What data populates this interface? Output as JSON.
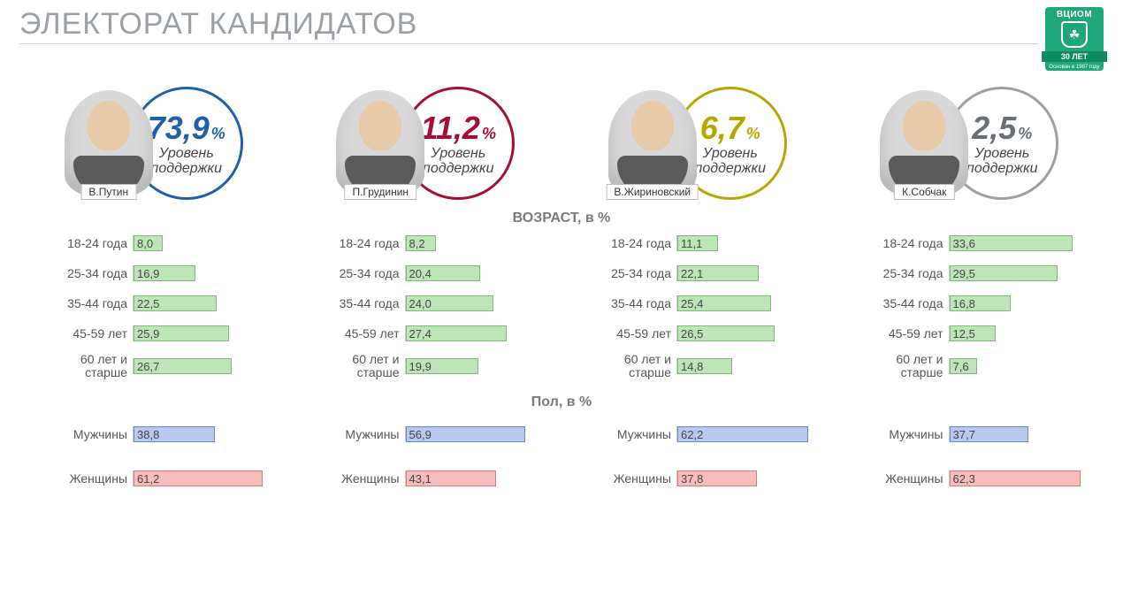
{
  "title": "ЭЛЕКТОРАТ КАНДИДАТОВ",
  "logo": {
    "brand": "ВЦИОМ",
    "ribbon": "30 ЛЕТ",
    "sub": "Основан в 1987 году",
    "bg_color": "#1fa67a"
  },
  "support_label_line1": "Уровень",
  "support_label_line2": "поддержки",
  "section_age_title": "ВОЗРАСТ, в %",
  "section_gender_title": "Пол, в %",
  "age_labels": [
    "18-24 года",
    "25-34 года",
    "35-44 года",
    "45-59 лет",
    "60 лет и старше"
  ],
  "gender_labels": [
    "Мужчины",
    "Женщины"
  ],
  "bar_colors": {
    "age_fill": "#bde5b8",
    "age_border": "#7fb97a",
    "male_fill": "#b8c8ef",
    "male_border": "#6a87c9",
    "female_fill": "#f6bdbd",
    "female_border": "#d97a7a"
  },
  "age_bar_max": 40,
  "gender_bar_max": 70,
  "pct_sign": "%",
  "candidates": [
    {
      "name": "В.Путин",
      "support": "73,9",
      "circle_color": "#1f5fae",
      "pct_color": "#1f5fae",
      "age": [
        "8,0",
        "16,9",
        "22,5",
        "25,9",
        "26,7"
      ],
      "age_num": [
        8.0,
        16.9,
        22.5,
        25.9,
        26.7
      ],
      "gender": [
        "38,8",
        "61,2"
      ],
      "gender_num": [
        38.8,
        61.2
      ]
    },
    {
      "name": "П.Грудинин",
      "support": "11,2",
      "circle_color": "#a31034",
      "pct_color": "#a31034",
      "age": [
        "8,2",
        "20,4",
        "24,0",
        "27,4",
        "19,9"
      ],
      "age_num": [
        8.2,
        20.4,
        24.0,
        27.4,
        19.9
      ],
      "gender": [
        "56,9",
        "43,1"
      ],
      "gender_num": [
        56.9,
        43.1
      ]
    },
    {
      "name": "В.Жириновский",
      "support": "6,7",
      "circle_color": "#b8a600",
      "pct_color": "#b8a600",
      "age": [
        "11,1",
        "22,1",
        "25,4",
        "26,5",
        "14,8"
      ],
      "age_num": [
        11.1,
        22.1,
        25.4,
        26.5,
        14.8
      ],
      "gender": [
        "62,2",
        "37,8"
      ],
      "gender_num": [
        62.2,
        37.8
      ]
    },
    {
      "name": "К.Собчак",
      "support": "2,5",
      "circle_color": "#9aa0a6",
      "pct_color": "#6a6f75",
      "age": [
        "33,6",
        "29,5",
        "16,8",
        "12,5",
        "7,6"
      ],
      "age_num": [
        33.6,
        29.5,
        16.8,
        12.5,
        7.6
      ],
      "gender": [
        "37,7",
        "62,3"
      ],
      "gender_num": [
        37.7,
        62.3
      ]
    }
  ]
}
